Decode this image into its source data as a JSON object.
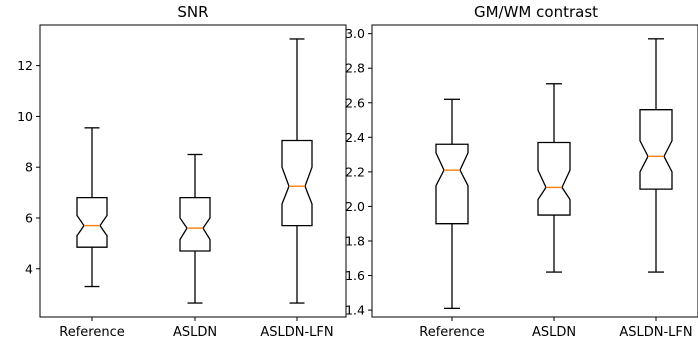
{
  "colors": {
    "box": "#000000",
    "median": "#ff7f0e",
    "background": "#ffffff"
  },
  "chart_data": [
    {
      "type": "box",
      "title": "SNR",
      "xlabel": "",
      "ylabel": "",
      "categories": [
        "Reference",
        "ASLDN",
        "ASLDN-LFN"
      ],
      "ylim": [
        2.1,
        13.6
      ],
      "yticks": [
        4,
        6,
        8,
        10,
        12
      ],
      "notched": true,
      "boxes": [
        {
          "whislo": 3.3,
          "q1": 4.85,
          "med": 5.7,
          "q3": 6.8,
          "whishi": 9.55,
          "cilo": 5.3,
          "cihi": 6.1
        },
        {
          "whislo": 2.65,
          "q1": 4.7,
          "med": 5.6,
          "q3": 6.8,
          "whishi": 8.5,
          "cilo": 5.15,
          "cihi": 6.0
        },
        {
          "whislo": 2.65,
          "q1": 5.7,
          "med": 7.25,
          "q3": 9.05,
          "whishi": 13.05,
          "cilo": 6.55,
          "cihi": 8.0
        }
      ]
    },
    {
      "type": "box",
      "title": "GM/WM contrast",
      "xlabel": "",
      "ylabel": "",
      "categories": [
        "Reference",
        "ASLDN",
        "ASLDN-LFN"
      ],
      "ylim": [
        1.36,
        3.05
      ],
      "yticks": [
        1.4,
        1.6,
        1.8,
        2.0,
        2.2,
        2.4,
        2.6,
        2.8,
        3.0
      ],
      "tick_decimals": 1,
      "notched": true,
      "boxes": [
        {
          "whislo": 1.41,
          "q1": 1.9,
          "med": 2.21,
          "q3": 2.36,
          "whishi": 2.62,
          "cilo": 2.12,
          "cihi": 2.31
        },
        {
          "whislo": 1.62,
          "q1": 1.95,
          "med": 2.11,
          "q3": 2.37,
          "whishi": 2.71,
          "cilo": 2.04,
          "cihi": 2.21
        },
        {
          "whislo": 1.62,
          "q1": 2.1,
          "med": 2.29,
          "q3": 2.56,
          "whishi": 2.97,
          "cilo": 2.2,
          "cihi": 2.38
        }
      ]
    }
  ]
}
